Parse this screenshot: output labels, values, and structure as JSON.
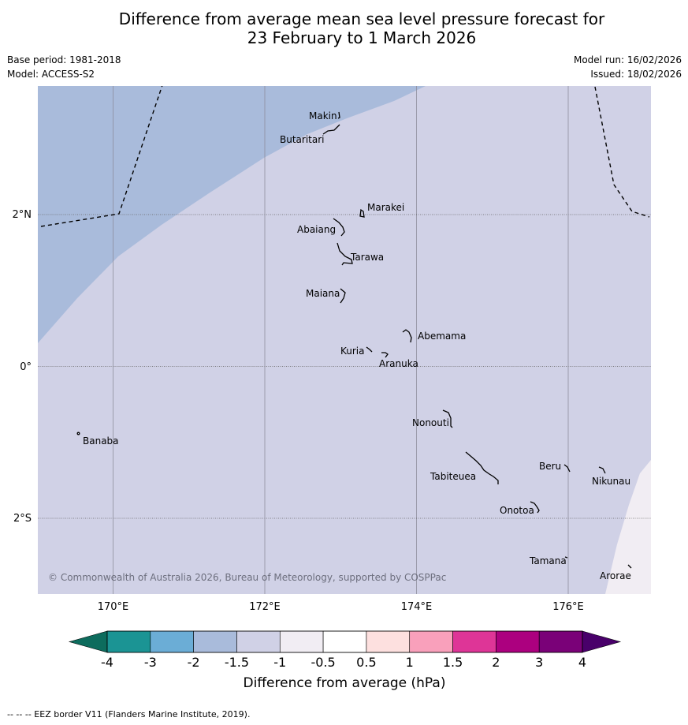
{
  "title": {
    "line1": "Difference from average mean sea level pressure forecast for",
    "line2": "23 February to 1 March 2026"
  },
  "meta": {
    "base_period": "Base period: 1981-2018",
    "model": "Model: ACCESS-S2",
    "model_run": "Model run: 16/02/2026",
    "issued": "Issued: 18/02/2026"
  },
  "map": {
    "longitude_labels": [
      "170°E",
      "172°E",
      "174°E",
      "176°E"
    ],
    "latitude_labels": [
      "2°N",
      "0°",
      "2°S"
    ],
    "copyright": "© Commonwealth of Australia 2026, Bureau of Meteorology, supported by COSPPac",
    "islands": [
      "Makin",
      "Butaritari",
      "Marakei",
      "Abaiang",
      "Tarawa",
      "Maiana",
      "Abemama",
      "Kuria",
      "Aranuka",
      "Nonouti",
      "Banaba",
      "Beru",
      "Nikunau",
      "Tabiteuea",
      "Onotoa",
      "Tamana",
      "Arorae"
    ],
    "zone_colors": {
      "minus_2_to_minus_1_5": "#a9bbdb",
      "minus_1_5_to_minus_1": "#d0d1e6",
      "minus_1_to_minus_0_5": "#f1edf3"
    }
  },
  "legend": {
    "title": "Difference from average (hPa)",
    "tick_labels": [
      "-4",
      "-3",
      "-2",
      "-1.5",
      "-1",
      "-0.5",
      "0.5",
      "1",
      "1.5",
      "2",
      "3",
      "4"
    ],
    "colors": [
      "#1b9494",
      "#6badd6",
      "#a9bbdb",
      "#d0d1e6",
      "#f1edf3",
      "#ffffff",
      "#fde0df",
      "#f9a0bb",
      "#de3597",
      "#ac007f",
      "#7a0178"
    ],
    "low_extend_color": "#0d6c5d",
    "high_extend_color": "#49006a"
  },
  "footnote": "--  --  -- EEZ border V11 (Flanders Marine Institute, 2019)."
}
